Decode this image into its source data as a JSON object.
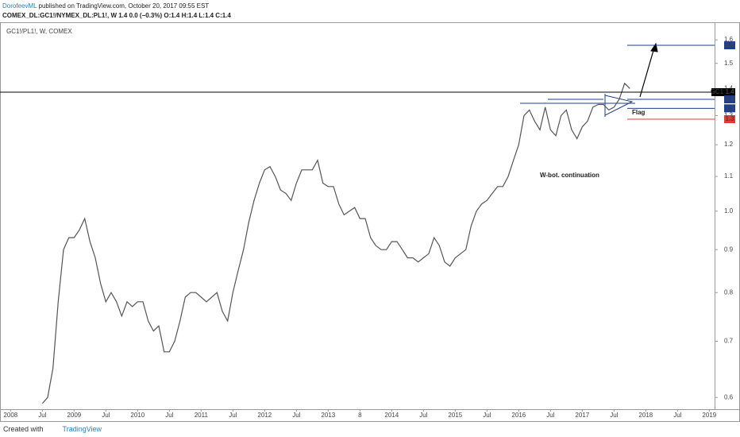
{
  "header": {
    "author": "DorofeevML",
    "published": "published on TradingView.com, October 20, 2017 09:55 EST",
    "symbol_line": "COMEX_DL:GC1!/NYMEX_DL:PL1!, W  1.4 0.0 (−0.3%)  O:1.4 H:1.4 L:1.4 C:1.4"
  },
  "footer": {
    "created": "Created with",
    "brand": "TradingView"
  },
  "chart_data": {
    "type": "line",
    "title": "GC1!/PL1!, W, COMEX",
    "color": "#555555",
    "log_scale": true,
    "x": [
      "2008-07",
      "2008-08",
      "2008-09",
      "2008-10",
      "2008-11",
      "2008-12",
      "2009-01",
      "2009-02",
      "2009-03",
      "2009-04",
      "2009-05",
      "2009-06",
      "2009-07",
      "2009-08",
      "2009-09",
      "2009-10",
      "2009-11",
      "2009-12",
      "2010-01",
      "2010-02",
      "2010-03",
      "2010-04",
      "2010-05",
      "2010-06",
      "2010-07",
      "2010-08",
      "2010-09",
      "2010-10",
      "2010-11",
      "2010-12",
      "2011-01",
      "2011-02",
      "2011-03",
      "2011-04",
      "2011-05",
      "2011-06",
      "2011-07",
      "2011-08",
      "2011-09",
      "2011-10",
      "2011-11",
      "2011-12",
      "2012-01",
      "2012-02",
      "2012-03",
      "2012-04",
      "2012-05",
      "2012-06",
      "2012-07",
      "2012-08",
      "2012-09",
      "2012-10",
      "2012-11",
      "2012-12",
      "2013-01",
      "2013-02",
      "2013-03",
      "2013-04",
      "2013-05",
      "2013-06",
      "2013-07",
      "2013-08",
      "2013-09",
      "2013-10",
      "2013-11",
      "2013-12",
      "2014-01",
      "2014-02",
      "2014-03",
      "2014-04",
      "2014-05",
      "2014-06",
      "2014-07",
      "2014-08",
      "2014-09",
      "2014-10",
      "2014-11",
      "2014-12",
      "2015-01",
      "2015-02",
      "2015-03",
      "2015-04",
      "2015-05",
      "2015-06",
      "2015-07",
      "2015-08",
      "2015-09",
      "2015-10",
      "2015-11",
      "2015-12",
      "2016-01",
      "2016-02",
      "2016-03",
      "2016-04",
      "2016-05",
      "2016-06",
      "2016-07",
      "2016-08",
      "2016-09",
      "2016-10",
      "2016-11",
      "2016-12",
      "2017-01",
      "2017-02",
      "2017-03",
      "2017-04",
      "2017-05",
      "2017-06",
      "2017-07",
      "2017-08",
      "2017-09",
      "2017-10"
    ],
    "values": [
      0.59,
      0.6,
      0.65,
      0.78,
      0.9,
      0.93,
      0.93,
      0.95,
      0.98,
      0.92,
      0.88,
      0.82,
      0.78,
      0.8,
      0.78,
      0.75,
      0.78,
      0.77,
      0.78,
      0.78,
      0.74,
      0.72,
      0.73,
      0.68,
      0.68,
      0.7,
      0.74,
      0.79,
      0.8,
      0.8,
      0.79,
      0.78,
      0.79,
      0.8,
      0.76,
      0.74,
      0.8,
      0.85,
      0.9,
      0.97,
      1.03,
      1.08,
      1.12,
      1.13,
      1.1,
      1.06,
      1.05,
      1.03,
      1.08,
      1.12,
      1.12,
      1.12,
      1.15,
      1.08,
      1.07,
      1.07,
      1.02,
      0.99,
      1.0,
      1.01,
      0.98,
      0.98,
      0.93,
      0.91,
      0.9,
      0.9,
      0.92,
      0.92,
      0.9,
      0.88,
      0.88,
      0.87,
      0.88,
      0.89,
      0.93,
      0.91,
      0.87,
      0.86,
      0.88,
      0.89,
      0.9,
      0.96,
      1.0,
      1.02,
      1.03,
      1.05,
      1.07,
      1.07,
      1.1,
      1.15,
      1.2,
      1.3,
      1.32,
      1.28,
      1.25,
      1.33,
      1.25,
      1.23,
      1.3,
      1.32,
      1.25,
      1.22,
      1.26,
      1.28,
      1.33,
      1.34,
      1.34,
      1.32,
      1.33,
      1.36,
      1.42,
      1.4
    ],
    "xlim": [
      "2007-11",
      "2019-02"
    ],
    "xticks": [
      {
        "value": "2008-01",
        "label": "2008"
      },
      {
        "value": "2008-07",
        "label": "Jul"
      },
      {
        "value": "2009-01",
        "label": "2009"
      },
      {
        "value": "2009-07",
        "label": "Jul"
      },
      {
        "value": "2010-01",
        "label": "2010"
      },
      {
        "value": "2010-07",
        "label": "Jul"
      },
      {
        "value": "2011-01",
        "label": "2011"
      },
      {
        "value": "2011-07",
        "label": "Jul"
      },
      {
        "value": "2012-01",
        "label": "2012"
      },
      {
        "value": "2012-07",
        "label": "Jul"
      },
      {
        "value": "2013-01",
        "label": "2013"
      },
      {
        "value": "2013-07",
        "label": "8"
      },
      {
        "value": "2014-01",
        "label": "2014"
      },
      {
        "value": "2014-07",
        "label": "Jul"
      },
      {
        "value": "2015-01",
        "label": "2015"
      },
      {
        "value": "2015-07",
        "label": "Jul"
      },
      {
        "value": "2016-01",
        "label": "2016"
      },
      {
        "value": "2016-07",
        "label": "Jul"
      },
      {
        "value": "2017-01",
        "label": "2017"
      },
      {
        "value": "2017-07",
        "label": "Jul"
      },
      {
        "value": "2018-01",
        "label": "2018"
      },
      {
        "value": "2018-07",
        "label": "Jul"
      },
      {
        "value": "2019-01",
        "label": "2019"
      }
    ],
    "ylim": [
      0.581,
      1.679
    ],
    "yticks": [
      0.6,
      0.7,
      0.8,
      0.9,
      {
        "value": 1,
        "label": "1.0"
      },
      1.1,
      1.2,
      1.3,
      1.4,
      1.5,
      1.6
    ],
    "levels": [
      {
        "value": 1.576,
        "label": "1.6",
        "color": "#1e3f8f"
      },
      {
        "value": 1.386,
        "label": "1.4",
        "tag": "GC1!",
        "color": "#000000"
      },
      {
        "value": 1.359,
        "label": "1.4",
        "color": "#1e3f8f"
      },
      {
        "value": 1.326,
        "label": "1.3",
        "color": "#1e3f8f"
      },
      {
        "value": 1.287,
        "label": "1.3",
        "color": "#e53935"
      }
    ],
    "annotations": [
      "Flag",
      "W-bot. continuation"
    ]
  }
}
